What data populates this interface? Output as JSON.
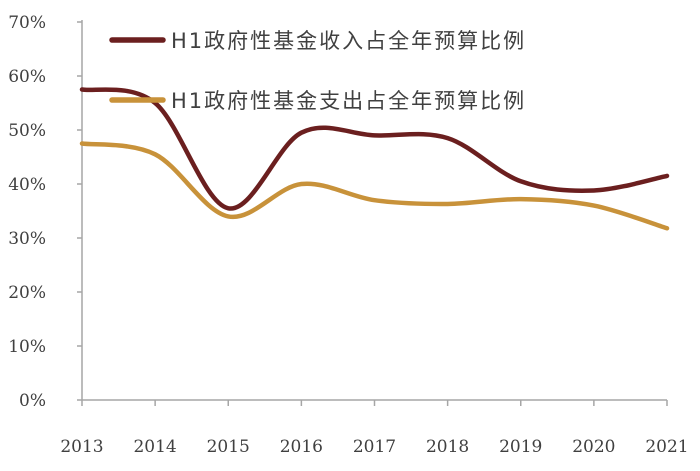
{
  "chart_data": {
    "type": "line",
    "title": "",
    "xlabel": "",
    "ylabel": "",
    "x": [
      "2013",
      "2014",
      "2015",
      "2016",
      "2017",
      "2018",
      "2019",
      "2020",
      "2021"
    ],
    "ylim": [
      0,
      70
    ],
    "yticks": [
      "0%",
      "10%",
      "20%",
      "30%",
      "40%",
      "50%",
      "60%",
      "70%"
    ],
    "grid": false,
    "legend_position": "top",
    "series": [
      {
        "name": "H1政府性基金收入占全年预算比例",
        "color": "#6b1f1f",
        "values": [
          57.5,
          55.0,
          35.5,
          49.5,
          49.0,
          48.5,
          40.5,
          38.8,
          41.5
        ]
      },
      {
        "name": "H1政府性基金支出占全年预算比例",
        "color": "#c8923a",
        "values": [
          47.5,
          45.5,
          34.0,
          40.0,
          37.0,
          36.3,
          37.2,
          36.0,
          31.8
        ]
      }
    ]
  }
}
